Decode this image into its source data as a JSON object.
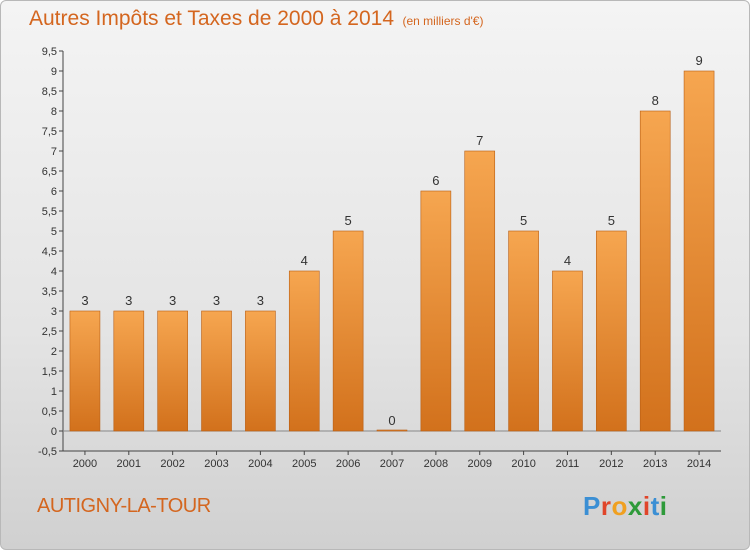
{
  "header": {
    "title": "Autres Impôts et Taxes de 2000 à 2014",
    "subtitle": "(en milliers d'€)"
  },
  "footer": {
    "commune": "AUTIGNY-LA-TOUR",
    "logo_letters": [
      {
        "ch": "P",
        "color": "#3b8fd4"
      },
      {
        "ch": "r",
        "color": "#e0452a"
      },
      {
        "ch": "o",
        "color": "#f0a020"
      },
      {
        "ch": "x",
        "color": "#2e9a3a"
      },
      {
        "ch": "i",
        "color": "#e0452a"
      },
      {
        "ch": "t",
        "color": "#3b8fd4"
      },
      {
        "ch": "i",
        "color": "#2e9a3a"
      }
    ]
  },
  "colors": {
    "title": "#d4661f",
    "bar_top": "#f6a650",
    "bar_bottom": "#d2711c",
    "bar_edge": "#b85d12",
    "axis": "#444444"
  },
  "chart_data": {
    "type": "bar",
    "categories": [
      "2000",
      "2001",
      "2002",
      "2003",
      "2004",
      "2005",
      "2006",
      "2007",
      "2008",
      "2009",
      "2010",
      "2011",
      "2012",
      "2013",
      "2014"
    ],
    "values": [
      3,
      3,
      3,
      3,
      3,
      4,
      5,
      0,
      6,
      7,
      5,
      4,
      5,
      8,
      9
    ],
    "ylim": [
      -0.5,
      9.5
    ],
    "yticks": [
      "-0,5",
      "0",
      "0,5",
      "1",
      "1,5",
      "2",
      "2,5",
      "3",
      "3,5",
      "4",
      "4,5",
      "5",
      "5,5",
      "6",
      "6,5",
      "7",
      "7,5",
      "8",
      "8,5",
      "9",
      "9,5"
    ],
    "ytick_values": [
      -0.5,
      0,
      0.5,
      1,
      1.5,
      2,
      2.5,
      3,
      3.5,
      4,
      4.5,
      5,
      5.5,
      6,
      6.5,
      7,
      7.5,
      8,
      8.5,
      9,
      9.5
    ],
    "grid": false,
    "xlabel": "",
    "ylabel": ""
  }
}
